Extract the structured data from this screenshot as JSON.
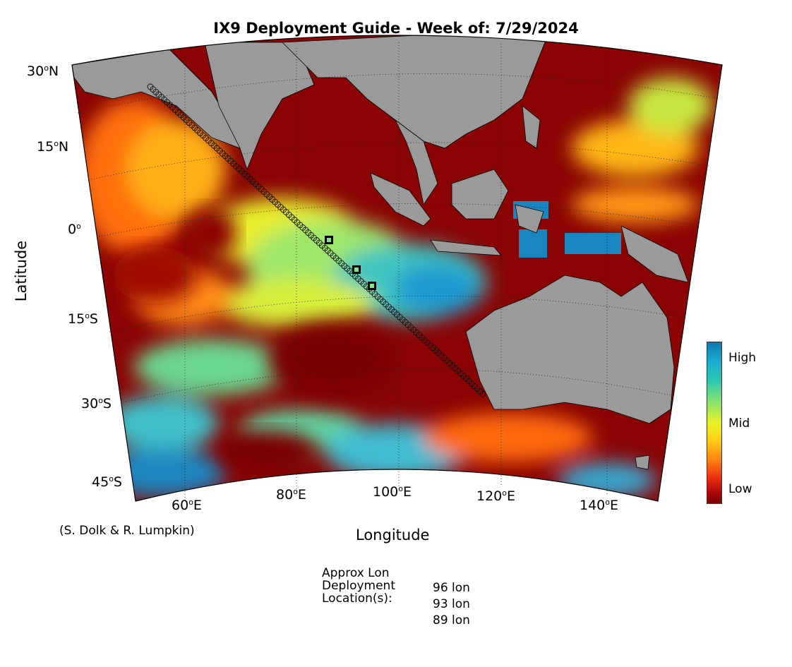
{
  "title": "IX9 Deployment Guide - Week of: 7/29/2024",
  "axes": {
    "xlabel": "Longitude",
    "ylabel": "Latitude",
    "lat_ticks": [
      {
        "value": "30",
        "hemi": "N"
      },
      {
        "value": "15",
        "hemi": "N"
      },
      {
        "value": "0",
        "hemi": ""
      },
      {
        "value": "15",
        "hemi": "S"
      },
      {
        "value": "30",
        "hemi": "S"
      },
      {
        "value": "45",
        "hemi": "S"
      }
    ],
    "lon_ticks": [
      {
        "value": "60",
        "hemi": "E"
      },
      {
        "value": "80",
        "hemi": "E"
      },
      {
        "value": "100",
        "hemi": "E"
      },
      {
        "value": "120",
        "hemi": "E"
      },
      {
        "value": "140",
        "hemi": "E"
      }
    ]
  },
  "colorbar": {
    "high_label": "High",
    "mid_label": "Mid",
    "low_label": "Low"
  },
  "credit": "(S. Dolk & R. Lumpkin)",
  "deployment": {
    "line1": "Approx Lon",
    "line2": "Deployment",
    "line3": "Location(s):",
    "locations": [
      "96 lon",
      "93 lon",
      "89 lon"
    ]
  },
  "colors": {
    "land": "#9a9a9a",
    "low": "#7a0000",
    "mid": "#e8f226",
    "high": "#0a78b0"
  }
}
